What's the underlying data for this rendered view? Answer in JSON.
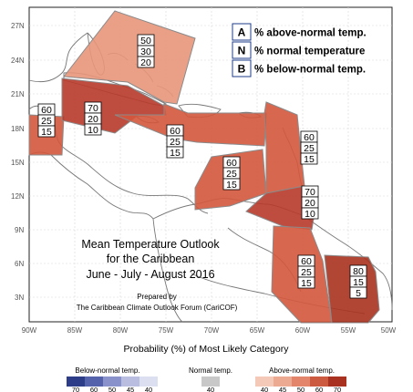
{
  "map": {
    "latitude_labels": [
      "27N",
      "24N",
      "21N",
      "18N",
      "15N",
      "12N",
      "9N",
      "6N",
      "3N"
    ],
    "longitude_labels": [
      "90W",
      "85W",
      "80W",
      "75W",
      "70W",
      "65W",
      "60W",
      "55W",
      "50W"
    ],
    "legend": [
      {
        "key": "A",
        "text": "% above-normal temp."
      },
      {
        "key": "N",
        "text": "% normal temperature"
      },
      {
        "key": "B",
        "text": "% below-normal temp."
      }
    ],
    "title_lines": [
      "Mean Temperature Outlook",
      "for the Caribbean",
      "June - July - August 2016"
    ],
    "prepared_lines": [
      "Prepared by",
      "The Caribbean Climate Outlook Forum (CariCOF)"
    ],
    "regions": [
      {
        "name": "bahamas",
        "probabilities": [
          "50",
          "30",
          "20"
        ],
        "color": "#e8967a"
      },
      {
        "name": "belize",
        "probabilities": [
          "60",
          "25",
          "15"
        ],
        "color": "#d4563c"
      },
      {
        "name": "cuba-cayman",
        "probabilities": [
          "70",
          "20",
          "10"
        ],
        "color": "#b83a2a"
      },
      {
        "name": "greater-antilles",
        "probabilities": [
          "60",
          "25",
          "15"
        ],
        "color": "#d4563c"
      },
      {
        "name": "eastern-caribbean",
        "probabilities": [
          "60",
          "25",
          "15"
        ],
        "color": "#d4563c"
      },
      {
        "name": "abc-islands",
        "probabilities": [
          "60",
          "25",
          "15"
        ],
        "color": "#d4563c"
      },
      {
        "name": "southern-windwards",
        "probabilities": [
          "70",
          "20",
          "10"
        ],
        "color": "#b83a2a"
      },
      {
        "name": "guyana",
        "probabilities": [
          "60",
          "25",
          "15"
        ],
        "color": "#d4563c"
      },
      {
        "name": "suriname-french-guiana",
        "probabilities": [
          "80",
          "15",
          "5"
        ],
        "color": "#a8321f"
      }
    ]
  },
  "footer": {
    "title": "Probability (%) of Most Likely Category",
    "below_label": "Below-normal temp.",
    "normal_label": "Normal temp.",
    "above_label": "Above-normal temp.",
    "below_ticks": [
      "70",
      "60",
      "50",
      "45",
      "40"
    ],
    "normal_ticks": [
      "40"
    ],
    "above_ticks": [
      "40",
      "45",
      "50",
      "60",
      "70"
    ],
    "below_colors": [
      "#2e3d87",
      "#5563ad",
      "#8a92cc",
      "#b9bee0",
      "#dcdff0"
    ],
    "normal_color": "#c8c8c8",
    "above_colors": [
      "#f5c9b8",
      "#ecaa93",
      "#e2856b",
      "#cc5a40",
      "#a8321f"
    ]
  }
}
